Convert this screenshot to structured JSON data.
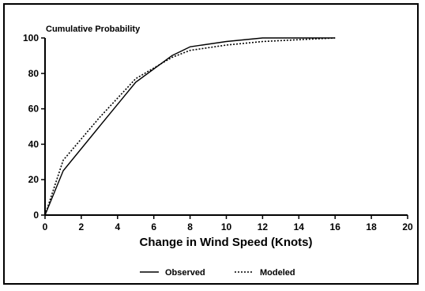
{
  "chart_data": {
    "type": "line",
    "title": "Cumulative Probability",
    "xlabel": "Change in Wind Speed (Knots)",
    "ylabel": "",
    "xlim": [
      0,
      20
    ],
    "ylim": [
      0,
      100
    ],
    "xticks": [
      0,
      2,
      4,
      6,
      8,
      10,
      12,
      14,
      16,
      18,
      20
    ],
    "yticks": [
      0,
      20,
      40,
      60,
      80,
      100
    ],
    "grid": false,
    "legend_position": "bottom",
    "series": [
      {
        "name": "Observed",
        "style": "solid",
        "x": [
          0,
          1,
          3,
          5,
          7,
          8,
          10,
          12,
          14,
          16
        ],
        "y": [
          0,
          25,
          50,
          75,
          90,
          95,
          98,
          100,
          100,
          100
        ]
      },
      {
        "name": "Modeled",
        "style": "dotted",
        "x": [
          0,
          1,
          3,
          5,
          7,
          8,
          10,
          12,
          14,
          16
        ],
        "y": [
          0,
          31,
          55,
          77,
          89,
          93,
          96,
          98,
          99,
          100
        ]
      }
    ]
  }
}
